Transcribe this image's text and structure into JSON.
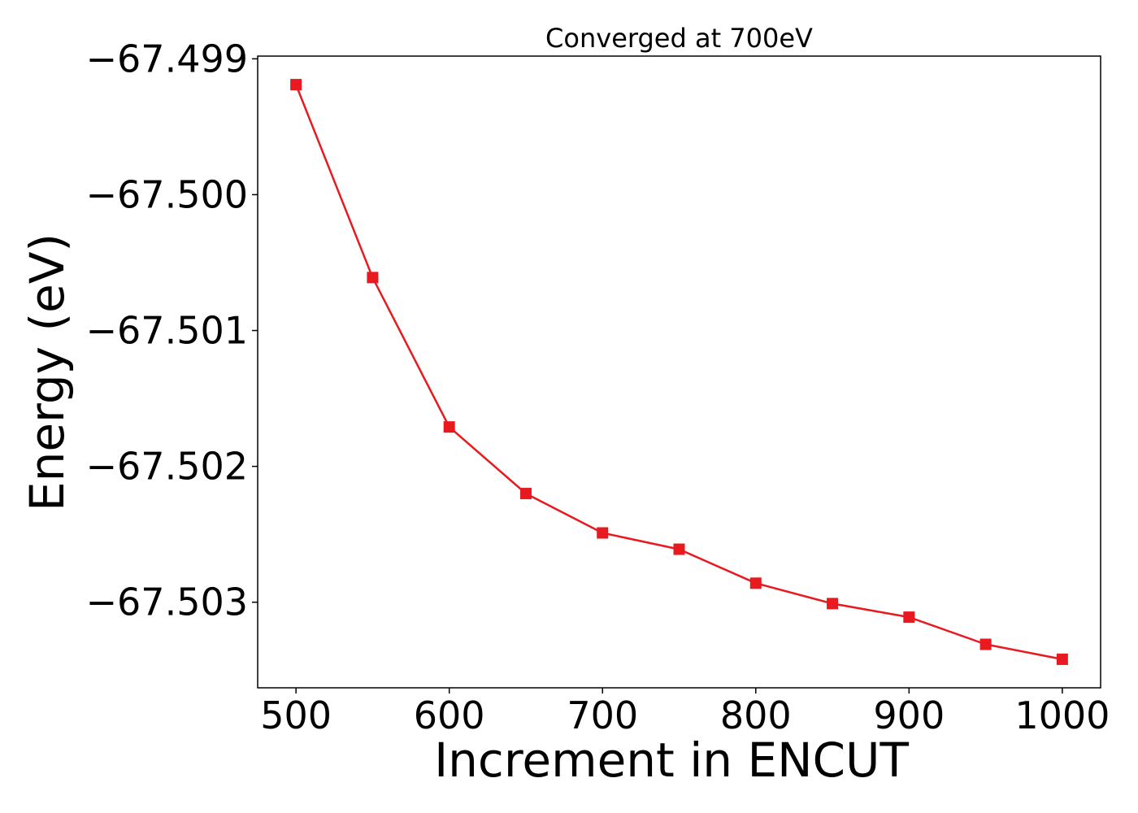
{
  "chart_data": {
    "type": "line",
    "title": "Converged at 700eV",
    "xlabel": "Increment in ENCUT",
    "ylabel": "Energy (eV)",
    "xlim": [
      475,
      1025
    ],
    "ylim": [
      -67.50363,
      -67.49898
    ],
    "x_ticks": [
      500,
      600,
      700,
      800,
      900,
      1000
    ],
    "x_tick_labels": [
      "500",
      "600",
      "700",
      "800",
      "900",
      "1000"
    ],
    "y_ticks": [
      -67.499,
      -67.5,
      -67.501,
      -67.502,
      -67.503
    ],
    "y_tick_labels": [
      "−67.499",
      "−67.500",
      "−67.501",
      "−67.502",
      "−67.503"
    ],
    "grid": false,
    "series": [
      {
        "color": "#e8191f",
        "marker": "square",
        "x": [
          500,
          550,
          600,
          650,
          700,
          750,
          800,
          850,
          900,
          950,
          1000
        ],
        "values": [
          -67.49919,
          -67.50061,
          -67.50171,
          -67.5022,
          -67.50249,
          -67.50261,
          -67.50286,
          -67.50301,
          -67.50311,
          -67.50331,
          -67.50342
        ]
      }
    ]
  }
}
